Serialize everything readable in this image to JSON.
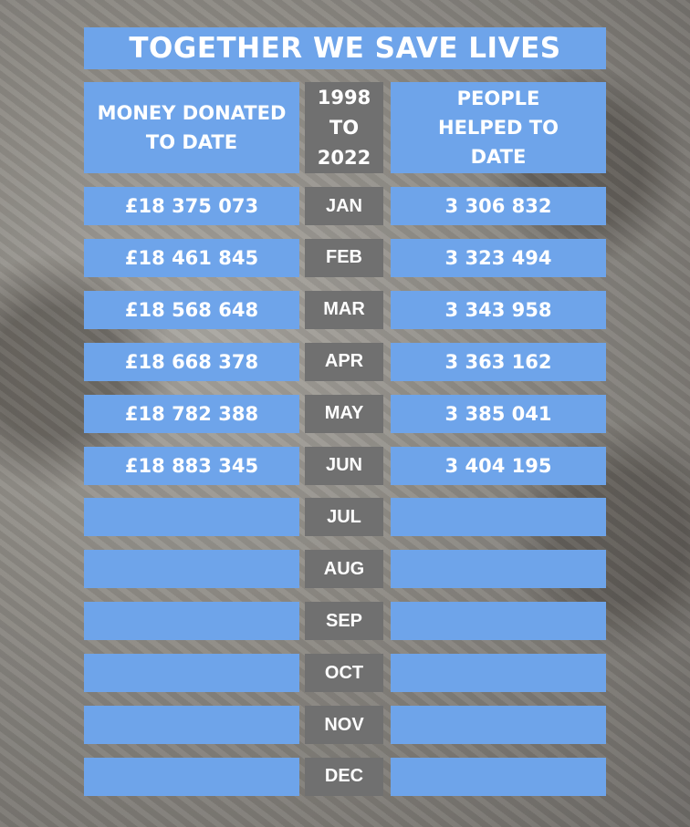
{
  "title": "TOGETHER WE SAVE LIVES",
  "table": {
    "headers": [
      "MONEY DONATED TO DATE",
      "1998 TO 2022",
      "PEOPLE HELPED TO DATE"
    ],
    "rows": [
      {
        "money": "£18 375 073",
        "month": "JAN",
        "people": "3 306 832"
      },
      {
        "money": "£18 461 845",
        "month": "FEB",
        "people": "3 323 494"
      },
      {
        "money": "£18 568 648",
        "month": "MAR",
        "people": "3 343 958"
      },
      {
        "money": "£18 668 378",
        "month": "APR",
        "people": "3 363 162"
      },
      {
        "money": "£18 782 388",
        "month": "MAY",
        "people": "3 385 041"
      },
      {
        "money": "£18 883 345",
        "month": "JUN",
        "people": "3 404 195"
      },
      {
        "month": "JUL"
      },
      {
        "month": "AUG"
      },
      {
        "month": "SEP"
      },
      {
        "month": "OCT"
      },
      {
        "month": "NOV"
      },
      {
        "month": "DEC"
      }
    ]
  }
}
